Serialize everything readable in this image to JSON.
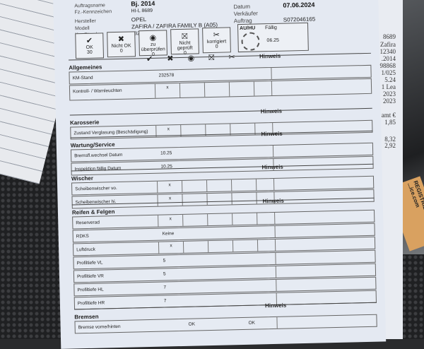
{
  "header": {
    "auftragsname_label": "Auftragsname",
    "auftragsname": "Bj. 2014",
    "kennzeichen_label": "Fz.-Kennzeichen",
    "kennzeichen": "HI-L 8689",
    "hersteller_label": "Hersteller",
    "hersteller": "OPEL",
    "modell_label": "Modell",
    "modell": "ZAFIRA / ZAFIRA FAMILY B (A05)",
    "kmstand_label": "Km-Stand",
    "kmstand": "232578",
    "datum_label": "Datum",
    "datum": "07.06.2024",
    "verkaeufer_label": "Verkäufer",
    "verkaeufer": "",
    "auftrag_label": "Auftrag",
    "auftrag": "S072046165"
  },
  "auhu": {
    "label": "AU/HU",
    "faellig_label": "Fällig",
    "faellig": "06.25"
  },
  "summary": [
    {
      "icon": "check-circle-icon",
      "glyph": "✔",
      "label": "OK",
      "count": "30"
    },
    {
      "icon": "x-circle-icon",
      "glyph": "✖",
      "label": "Nicht OK",
      "count": "0"
    },
    {
      "icon": "eye-icon",
      "glyph": "◉",
      "label": "zu überprüfen",
      "count": "0"
    },
    {
      "icon": "not-checked-icon",
      "glyph": "⛝",
      "label": "Nicht geprüft",
      "count": "0"
    },
    {
      "icon": "corrected-icon",
      "glyph": "✂",
      "label": "korrigiert",
      "count": "0"
    }
  ],
  "hinweis": "Hinweis",
  "sections": [
    {
      "title": "Allgemeines",
      "rows": [
        {
          "label": "KM-Stand",
          "value": "232578"
        },
        {
          "label": "Kontroll- / Warnleuchten",
          "mark": "x",
          "tall": true
        }
      ]
    },
    {
      "title": "Karosserie",
      "rows": [
        {
          "label": "Zustand Verglasung (Beschädigung)",
          "mark": "x"
        }
      ]
    },
    {
      "title": "Wartung/Service",
      "rows": [
        {
          "label": "Bremsfl.wechsel Datum",
          "value": "10.25"
        },
        {
          "label": "Inspektion fällig Datum",
          "value": "10.25"
        }
      ]
    },
    {
      "title": "Wischer",
      "rows": [
        {
          "label": "Scheibenwischer vo.",
          "mark": "x"
        },
        {
          "label": "Scheibenwischer hi.",
          "mark": "x"
        }
      ]
    },
    {
      "title": "Reifen & Felgen",
      "rows": [
        {
          "label": "Reserverad",
          "mark": "x"
        },
        {
          "label": "RDKS",
          "value": "Keine"
        },
        {
          "label": "Luftdruck",
          "mark": "x"
        },
        {
          "label": "Profiltiefe VL",
          "value": "5"
        },
        {
          "label": "Profiltiefe VR",
          "value": "5"
        },
        {
          "label": "Profiltiefe HL",
          "value": "7"
        },
        {
          "label": "Profiltiefe HR",
          "value": "7"
        }
      ]
    },
    {
      "title": "Bremsen",
      "rows": [
        {
          "label": "Bremse vorne/hinten",
          "value": "OK",
          "value2": "OK"
        }
      ]
    }
  ],
  "right_paper": [
    "8689",
    "Zafira",
    "12340",
    ".2014",
    "98868",
    "1/025",
    "5.24",
    "1 Lea",
    "2023",
    "2023",
    "amt €",
    "1,85",
    "8,32",
    "2,92"
  ],
  "sticker": "REGISTRIEREN: ...ice.com"
}
